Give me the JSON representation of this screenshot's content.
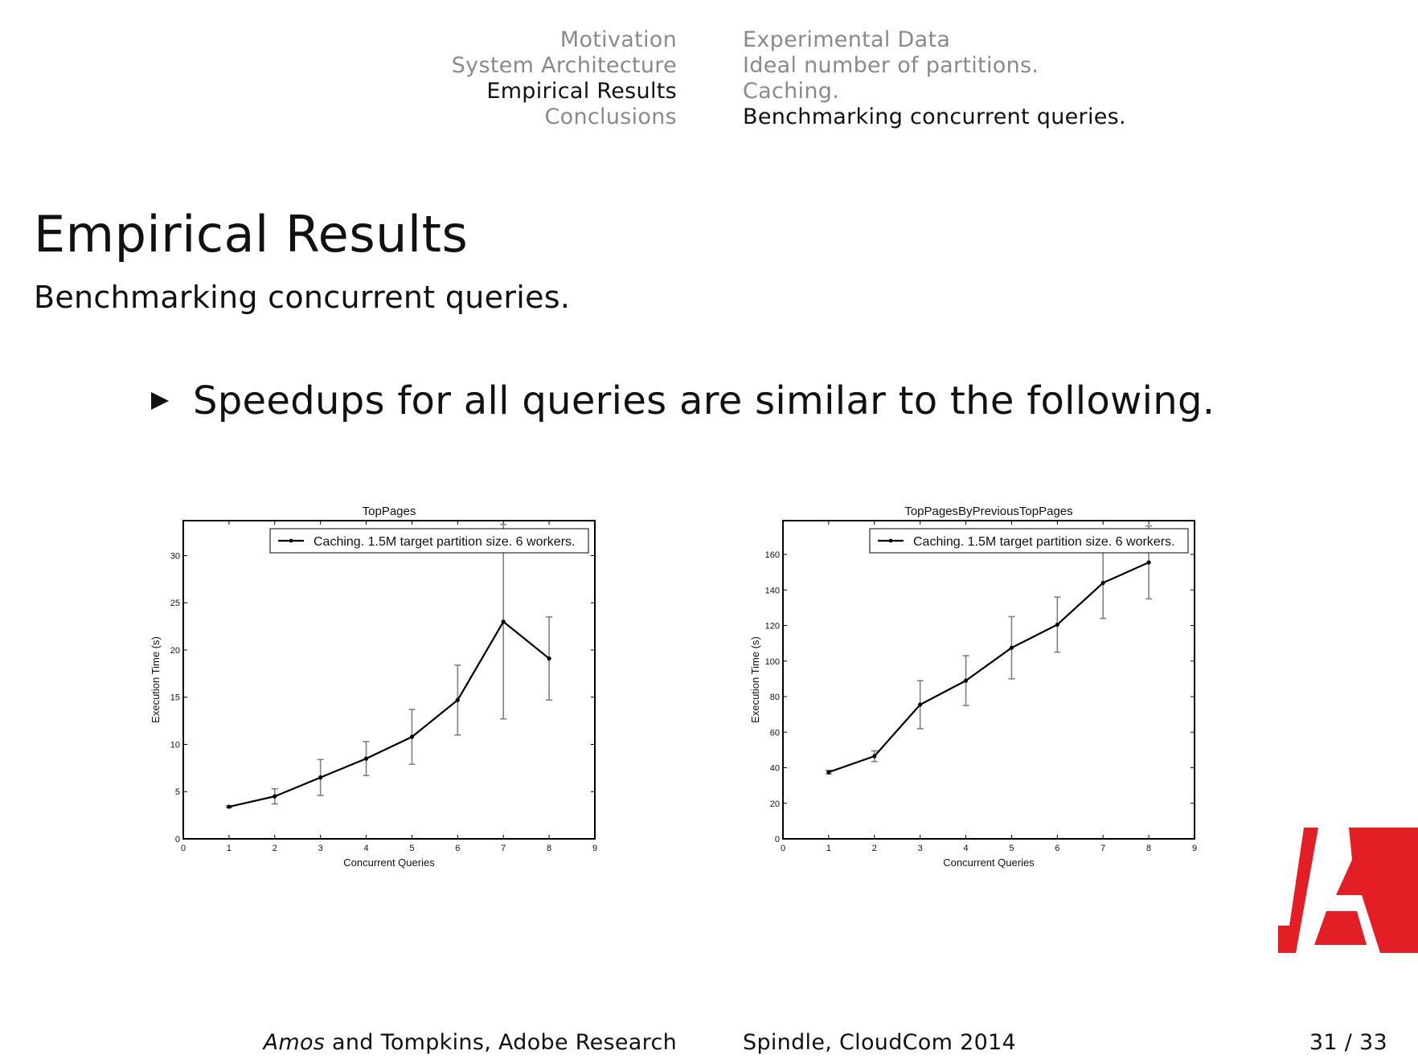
{
  "nav": {
    "sections": [
      "Motivation",
      "System Architecture",
      "Empirical Results",
      "Conclusions"
    ],
    "subsections": [
      "Experimental Data",
      "Ideal number of partitions.",
      "Caching.",
      "Benchmarking concurrent queries."
    ],
    "active_section": 2,
    "active_subsection": 3
  },
  "frame": {
    "title": "Empirical Results",
    "subtitle": "Benchmarking concurrent queries."
  },
  "bullet": {
    "text": "Speedups for all queries are similar to the following."
  },
  "footer": {
    "author_italic": "Amos",
    "author_rest": " and Tompkins, Adobe Research",
    "venue": "Spindle, CloudCom 2014",
    "page": "31 / 33"
  },
  "colors": {
    "line": "#000000",
    "errorbar": "#808080",
    "logo": "#e31e24",
    "nav_inactive": "#8a8a8a"
  },
  "logo": {
    "icon": "adobe-logo-icon"
  },
  "chart_data": [
    {
      "type": "line",
      "title": "TopPages",
      "xlabel": "Concurrent Queries",
      "ylabel": "Execution Time (s)",
      "xlim": [
        0,
        9
      ],
      "ylim": [
        0,
        33.7
      ],
      "xticks": [
        0,
        1,
        2,
        3,
        4,
        5,
        6,
        7,
        8,
        9
      ],
      "yticks": [
        0,
        5,
        10,
        15,
        20,
        25,
        30
      ],
      "legend": "upper right",
      "grid": false,
      "series": [
        {
          "name": "Caching. 1.5M target partition size. 6 workers.",
          "x": [
            1,
            2,
            3,
            4,
            5,
            6,
            7,
            8
          ],
          "y": [
            3.4,
            4.5,
            6.5,
            8.5,
            10.8,
            14.7,
            23.0,
            19.1
          ],
          "yerr": [
            0.1,
            0.8,
            1.9,
            1.8,
            2.9,
            3.7,
            10.3,
            4.4
          ]
        }
      ]
    },
    {
      "type": "line",
      "title": "TopPagesByPreviousTopPages",
      "xlabel": "Concurrent Queries",
      "ylabel": "Execution Time (s)",
      "xlim": [
        0,
        9
      ],
      "ylim": [
        0,
        179
      ],
      "xticks": [
        0,
        1,
        2,
        3,
        4,
        5,
        6,
        7,
        8,
        9
      ],
      "yticks": [
        0,
        20,
        40,
        60,
        80,
        100,
        120,
        140,
        160
      ],
      "legend": "upper right",
      "grid": false,
      "series": [
        {
          "name": "Caching. 1.5M target partition size. 6 workers.",
          "x": [
            1,
            2,
            3,
            4,
            5,
            6,
            7,
            8
          ],
          "y": [
            37.5,
            46.5,
            75.5,
            89.0,
            107.5,
            120.5,
            144.0,
            155.5
          ],
          "yerr": [
            1.0,
            3.0,
            13.5,
            14.0,
            17.5,
            15.5,
            20.0,
            20.5
          ]
        }
      ]
    }
  ]
}
